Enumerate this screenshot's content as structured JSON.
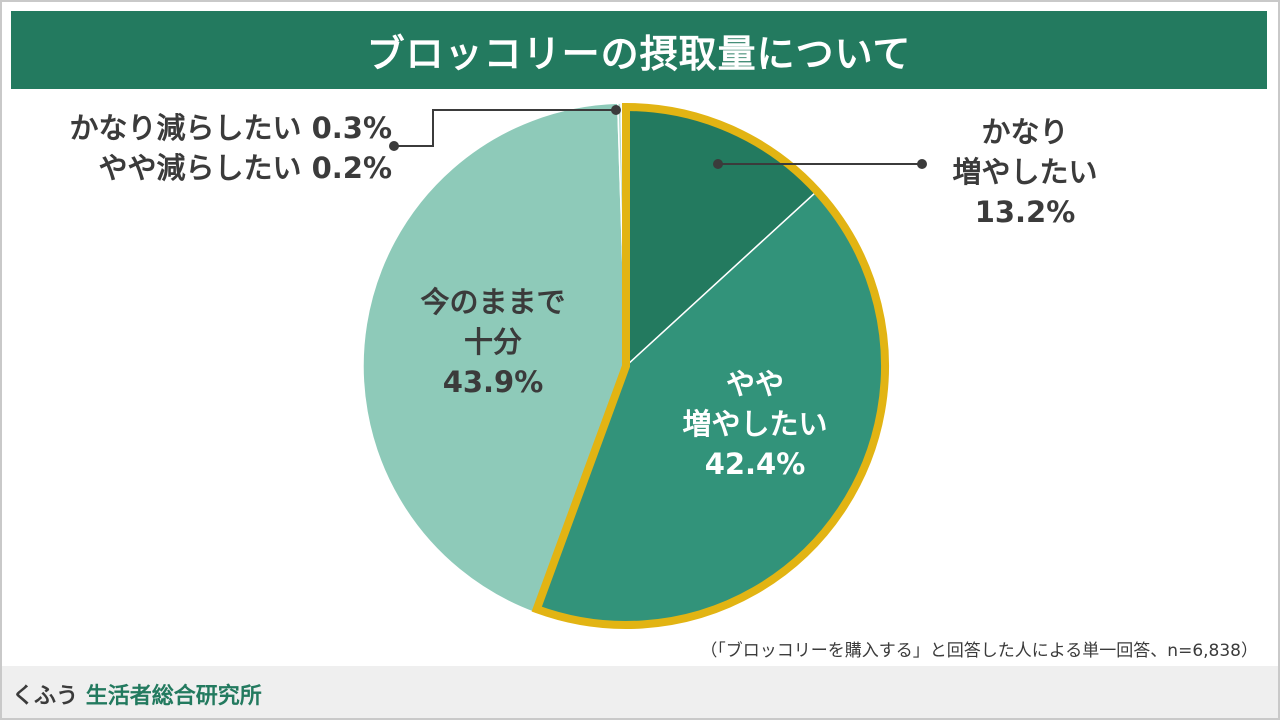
{
  "header": {
    "title": "ブロッコリーの摂取量について"
  },
  "chart_data": {
    "type": "pie",
    "title": "ブロッコリーの摂取量について",
    "start_angle_deg": 0,
    "direction": "clockwise",
    "slices": [
      {
        "key": "much_more",
        "label_lines": [
          "かなり",
          "増やしたい",
          "13.2%"
        ],
        "value": 13.2,
        "color": "#237a5f",
        "highlighted": true
      },
      {
        "key": "somewhat_more",
        "label_lines": [
          "やや",
          "増やしたい",
          "42.4%"
        ],
        "value": 42.4,
        "color": "#32937a",
        "highlighted": true
      },
      {
        "key": "as_is",
        "label_lines": [
          "今のままで",
          "十分",
          "43.9%"
        ],
        "value": 43.9,
        "color": "#8ecab9",
        "highlighted": false
      },
      {
        "key": "somewhat_less",
        "label_lines": [
          "やや減らしたい 0.2%"
        ],
        "value": 0.2,
        "color": "#b4dccf",
        "highlighted": false
      },
      {
        "key": "much_less",
        "label_lines": [
          "かなり減らしたい 0.3%"
        ],
        "value": 0.3,
        "color": "#d3ebe3",
        "highlighted": false
      }
    ],
    "highlight_color": "#e2b413",
    "note": "（「ブロッコリーを購入する」と回答した人による単一回答、n=6,838）"
  },
  "footer": {
    "brand_prefix": "くふう",
    "brand_name": "生活者総合研究所"
  }
}
